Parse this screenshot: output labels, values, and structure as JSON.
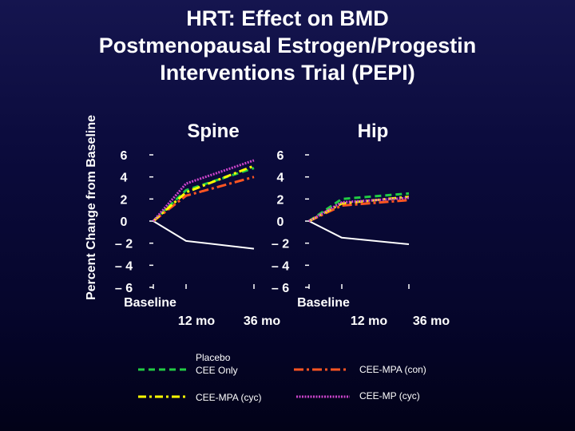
{
  "title_lines": [
    "HRT: Effect on BMD",
    "Postmenopausal Estrogen/Progestin",
    "Interventions Trial (PEPI)"
  ],
  "ylabel": "Percent Change from Baseline",
  "legend": {
    "placebo": "Placebo",
    "cee_only": "CEE Only",
    "cee_mpa_con": "CEE-MPA (con)",
    "cee_mpa_cyc": "CEE-MPA (cyc)",
    "cee_mp_cyc": "CEE-MP (cyc)"
  },
  "colors": {
    "placebo": "#ffffff",
    "cee_only": "#22cc44",
    "cee_mpa_con": "#ff5522",
    "cee_mpa_cyc": "#ffff00",
    "cee_mp_cyc": "#cc44cc"
  },
  "chart_data": [
    {
      "type": "line",
      "title": "Spine",
      "x": [
        "Baseline",
        "12 mo",
        "36 mo"
      ],
      "ylim": [
        -6,
        6
      ],
      "yticks": [
        "6",
        "4",
        "2",
        "0",
        "– 2",
        "– 4",
        "– 6"
      ],
      "series": [
        {
          "name": "Placebo",
          "values": [
            0,
            -1.8,
            -2.5
          ]
        },
        {
          "name": "CEE Only",
          "values": [
            0,
            2.8,
            4.8
          ]
        },
        {
          "name": "CEE-MPA (con)",
          "values": [
            0,
            2.3,
            4.0
          ]
        },
        {
          "name": "CEE-MPA (cyc)",
          "values": [
            0,
            2.6,
            5.0
          ]
        },
        {
          "name": "CEE-MP (cyc)",
          "values": [
            0,
            3.4,
            5.5
          ]
        }
      ]
    },
    {
      "type": "line",
      "title": "Hip",
      "x": [
        "Baseline",
        "12 mo",
        "36 mo"
      ],
      "ylim": [
        -6,
        6
      ],
      "yticks": [
        "6",
        "4",
        "2",
        "0",
        "– 2",
        "– 4",
        "– 6"
      ],
      "series": [
        {
          "name": "Placebo",
          "values": [
            0,
            -1.5,
            -2.1
          ]
        },
        {
          "name": "CEE Only",
          "values": [
            0,
            2.0,
            2.5
          ]
        },
        {
          "name": "CEE-MPA (con)",
          "values": [
            0,
            1.4,
            1.9
          ]
        },
        {
          "name": "CEE-MPA (cyc)",
          "values": [
            0,
            1.6,
            2.2
          ]
        },
        {
          "name": "CEE-MP (cyc)",
          "values": [
            0,
            1.7,
            2.1
          ]
        }
      ]
    }
  ]
}
